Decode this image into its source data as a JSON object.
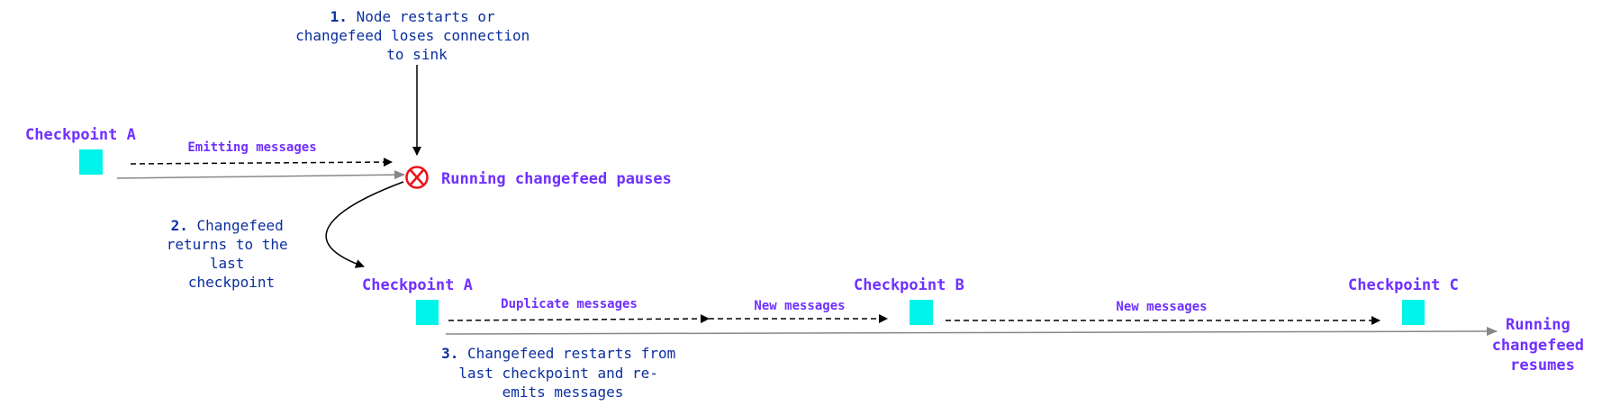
{
  "colors": {
    "label": "#7030ff",
    "note": "#0b2f9e",
    "checkpoint": "#00f5ea",
    "error": "#e8141b",
    "timeline": "#888888"
  },
  "step1": {
    "num": "1.",
    "lines": [
      "Node restarts or",
      "changefeed loses connection",
      "to sink"
    ]
  },
  "step2": {
    "num": "2.",
    "lines": [
      "Changefeed",
      "returns to the",
      "last",
      "checkpoint"
    ]
  },
  "step3": {
    "num": "3.",
    "lines": [
      "Changefeed restarts from",
      "last checkpoint and re-",
      "emits messages"
    ]
  },
  "top": {
    "checkpoint": "Checkpoint A",
    "emitting": "Emitting messages",
    "pause": "Running changefeed pauses",
    "error_icon": "circle-x-icon"
  },
  "bottom": {
    "checkpoints": [
      "Checkpoint A",
      "Checkpoint B",
      "Checkpoint C"
    ],
    "segments": [
      "Duplicate messages",
      "New messages",
      "New messages"
    ],
    "resume": [
      "Running",
      "changefeed",
      "resumes"
    ]
  }
}
